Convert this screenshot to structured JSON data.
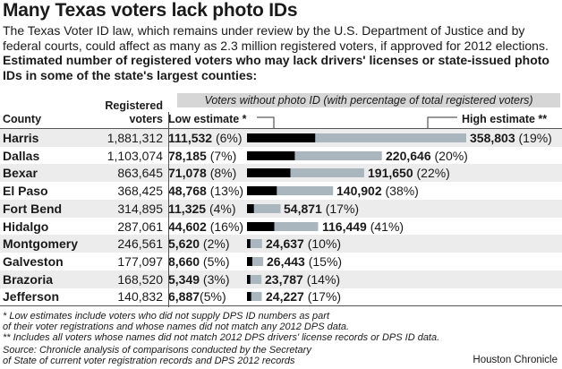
{
  "title": "Many Texas voters lack photo IDs",
  "intro": "The Texas Voter ID law, which remains under review by the U.S. Department of Justice and by federal courts, could affect as many as 2.3 million registered voters,  if approved for 2012 elections.",
  "intro_bold": "Estimated number of registered voters who may lack drivers' licenses or state-issued photo IDs in some of the state's largest counties:",
  "header": {
    "county": "County",
    "registered_line1": "Registered",
    "registered_line2": "voters",
    "band": "Voters without photo ID (with percentage of total registered voters)",
    "low": "Low estimate *",
    "high": "High estimate **"
  },
  "colors": {
    "low_bar": "#000000",
    "high_bar": "#a9b6bd",
    "band": "#d6d6d6",
    "row_shade": "#ececec"
  },
  "chart_data": {
    "type": "bar",
    "categories": [
      "Harris",
      "Dallas",
      "Bexar",
      "El Paso",
      "Fort Bend",
      "Hidalgo",
      "Montgomery",
      "Galveston",
      "Brazoria",
      "Jefferson"
    ],
    "registered": [
      "1,881,312",
      "1,103,074",
      "863,645",
      "368,425",
      "314,895",
      "287,061",
      "246,561",
      "177,097",
      "168,520",
      "140,832"
    ],
    "series": [
      {
        "name": "Low estimate *",
        "values": [
          111532,
          78185,
          71078,
          48768,
          11325,
          44602,
          5620,
          8660,
          5349,
          6887
        ],
        "labels": [
          "111,532",
          "78,185",
          "71,078",
          "48,768",
          "11,325",
          "44,602",
          "5,620",
          "8,660",
          "5,349",
          "6,887"
        ],
        "pct": [
          " (6%)",
          " (7%)",
          " (8%)",
          " (13%)",
          " (4%)",
          " (16%)",
          " (2%)",
          " (5%)",
          " (3%)",
          "(5%)"
        ]
      },
      {
        "name": "High estimate **",
        "values": [
          358803,
          220646,
          191650,
          140902,
          54871,
          116449,
          24637,
          26443,
          23787,
          24227
        ],
        "labels": [
          "358,803",
          "220,646",
          "191,650",
          "140,902",
          "54,871",
          "116,449",
          "24,637",
          "26,443",
          "23,787",
          "24,227"
        ],
        "pct": [
          " (19%)",
          " (20%)",
          " (22%)",
          " (38%)",
          " (17%)",
          " (41%)",
          " (10%)",
          " (15%)",
          " (14%)",
          " (17%)"
        ]
      }
    ]
  },
  "notes": [
    "* Low estimates include voters who did not supply DPS ID numbers as part",
    "of their voter registrations and whose names did not match any 2012 DPS data.",
    "** Includes all voters whose names did not match 2012 DPS drivers' license records or DPS ID data.",
    "Source: Chronicle analysis of comparisons conducted by the Secretary",
    "of State of current voter registration records and DPS 2012 records"
  ],
  "credit": "Houston Chronicle"
}
